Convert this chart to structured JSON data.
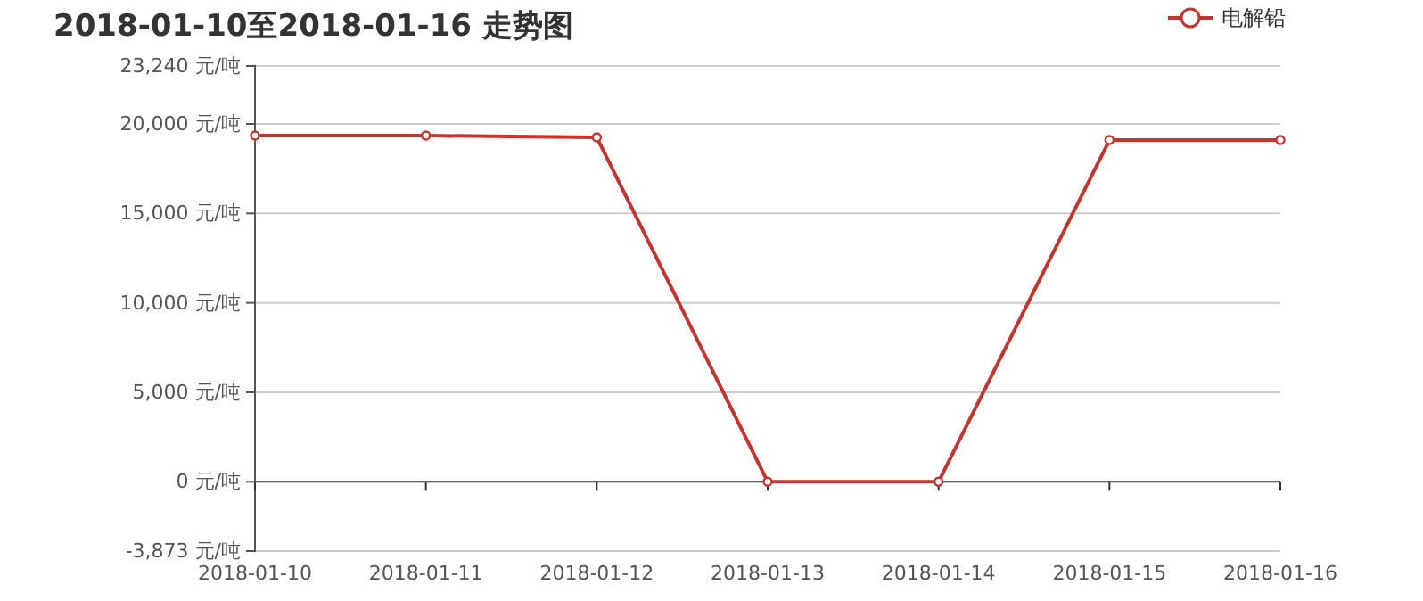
{
  "chart_data": {
    "type": "line",
    "title": "2018-01-10至2018-01-16 走势图",
    "categories": [
      "2018-01-10",
      "2018-01-11",
      "2018-01-12",
      "2018-01-13",
      "2018-01-14",
      "2018-01-15",
      "2018-01-16"
    ],
    "series": [
      {
        "name": "电解铅",
        "color": "#c23531",
        "values": [
          19350,
          19350,
          19250,
          0,
          0,
          19100,
          19100
        ]
      }
    ],
    "ylim": [
      -3873,
      23240
    ],
    "yticks": [
      {
        "value": -3873,
        "label": "-3,873 元/吨"
      },
      {
        "value": 0,
        "label": "0 元/吨"
      },
      {
        "value": 5000,
        "label": "5,000 元/吨"
      },
      {
        "value": 10000,
        "label": "10,000 元/吨"
      },
      {
        "value": 15000,
        "label": "15,000 元/吨"
      },
      {
        "value": 20000,
        "label": "20,000 元/吨"
      },
      {
        "value": 23240,
        "label": "23,240 元/吨"
      }
    ],
    "grid": "y",
    "legend": "top right",
    "marker": "circle",
    "line_style": "solid"
  }
}
